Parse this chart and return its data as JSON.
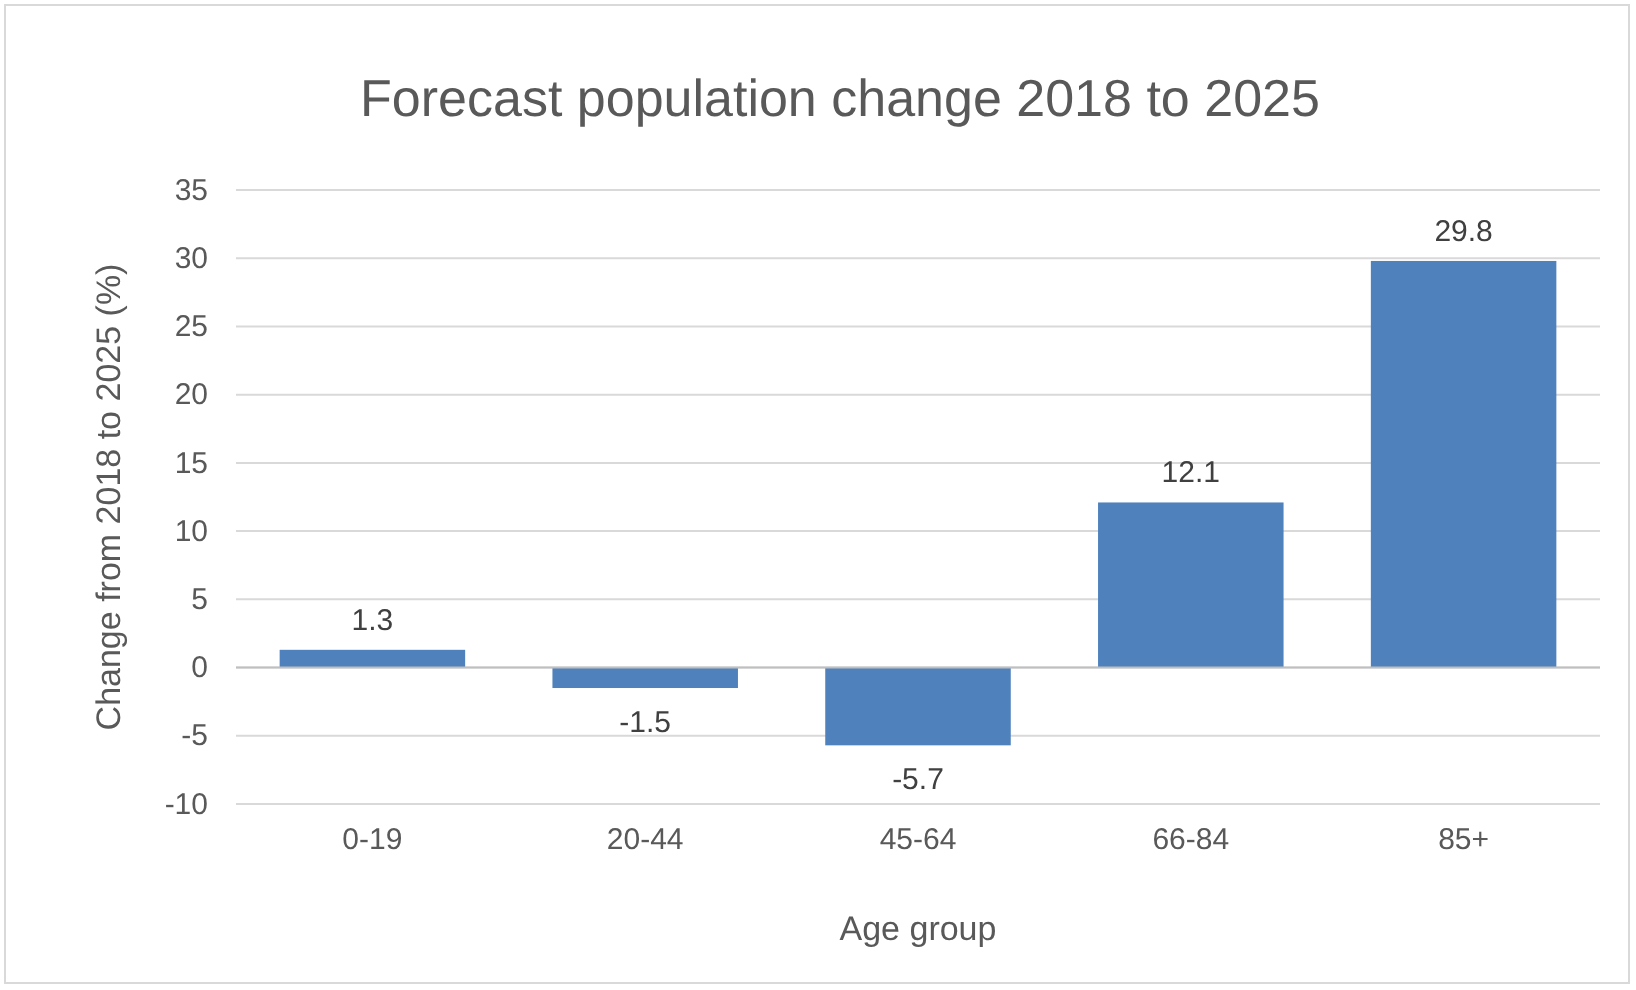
{
  "chart_data": {
    "type": "bar",
    "title": "Forecast population change 2018 to 2025",
    "xlabel": "Age group",
    "ylabel": "Change from 2018 to 2025 (%)",
    "categories": [
      "0-19",
      "20-44",
      "45-64",
      "66-84",
      "85+"
    ],
    "values": [
      1.3,
      -1.5,
      -5.7,
      12.1,
      29.8
    ],
    "color": "#4f81bd",
    "ylim": [
      -10,
      35
    ],
    "yticks": [
      -10,
      -5,
      0,
      5,
      10,
      15,
      20,
      25,
      30,
      35
    ],
    "grid": "y",
    "data_labels": true
  }
}
